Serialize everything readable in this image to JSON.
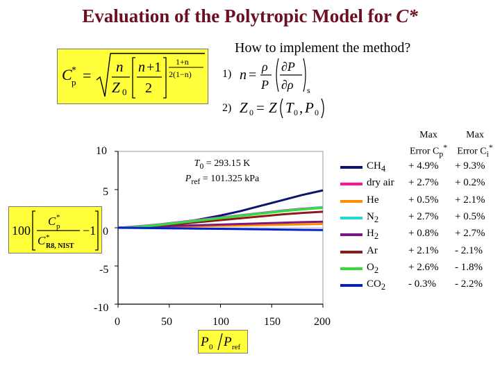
{
  "slide": {
    "title_text": "Evaluation of the Polytropic Model for ",
    "title_symbol": "C*",
    "subtitle": "How to implement the method?",
    "step1_label": "1)",
    "step2_label": "2)"
  },
  "legend_headers": {
    "col1_line1": "Max",
    "col1_line2": "Error C",
    "col1_sub": "p",
    "col1_sup": "*",
    "col2_line1": "Max",
    "col2_line2": "Error C",
    "col2_sub": "i",
    "col2_sup": "*"
  },
  "chart_data": {
    "type": "line",
    "xlim": [
      0,
      200
    ],
    "ylim": [
      -10,
      10
    ],
    "xticks": [
      "0",
      "50",
      "100",
      "150",
      "200"
    ],
    "yticks": [
      "10",
      "5",
      "0",
      "-5",
      "-10"
    ],
    "annotation": {
      "line1_sym": "T",
      "line1_sub": "0",
      "line1_val": " = 293.15 K",
      "line2_sym": "P",
      "line2_sub": "ref",
      "line2_val": " = 101.325 kPa"
    },
    "series": [
      {
        "name": "CH",
        "sub": "4",
        "color": "#0a1570",
        "max_err_cp": "+ 4.9%",
        "max_err_ci": "+ 9.3%",
        "x": [
          0,
          20,
          40,
          60,
          80,
          100,
          120,
          140,
          160,
          180,
          200
        ],
        "y": [
          0.0,
          0.05,
          0.3,
          0.65,
          1.1,
          1.6,
          2.2,
          2.9,
          3.6,
          4.3,
          4.9
        ]
      },
      {
        "name": "dry air",
        "sub": "",
        "color": "#ff1493",
        "max_err_cp": "+ 2.7%",
        "max_err_ci": "+ 0.2%",
        "x": [
          0,
          20,
          40,
          60,
          80,
          100,
          120,
          140,
          160,
          180,
          200
        ],
        "y": [
          0.0,
          0.2,
          0.45,
          0.75,
          1.05,
          1.35,
          1.65,
          1.95,
          2.25,
          2.5,
          2.7
        ]
      },
      {
        "name": "He",
        "sub": "",
        "color": "#ff8c00",
        "max_err_cp": "+ 0.5%",
        "max_err_ci": "+ 2.1%",
        "x": [
          0,
          20,
          40,
          60,
          80,
          100,
          120,
          140,
          160,
          180,
          200
        ],
        "y": [
          0.0,
          0.05,
          0.1,
          0.15,
          0.2,
          0.25,
          0.3,
          0.35,
          0.4,
          0.45,
          0.5
        ]
      },
      {
        "name": "N",
        "sub": "2",
        "color": "#20d8d8",
        "max_err_cp": "+ 2.7%",
        "max_err_ci": "+ 0.5%",
        "x": [
          0,
          20,
          40,
          60,
          80,
          100,
          120,
          140,
          160,
          180,
          200
        ],
        "y": [
          0.0,
          0.15,
          0.4,
          0.7,
          1.0,
          1.3,
          1.6,
          1.9,
          2.2,
          2.45,
          2.7
        ]
      },
      {
        "name": "H",
        "sub": "2",
        "color": "#7a1a80",
        "max_err_cp": "+ 0.8%",
        "max_err_ci": "+ 2.7%",
        "x": [
          0,
          20,
          40,
          60,
          80,
          100,
          120,
          140,
          160,
          180,
          200
        ],
        "y": [
          0.0,
          0.1,
          0.18,
          0.26,
          0.34,
          0.42,
          0.5,
          0.58,
          0.66,
          0.74,
          0.8
        ]
      },
      {
        "name": "Ar",
        "sub": "",
        "color": "#8b1a1a",
        "max_err_cp": "+ 2.1%",
        "max_err_ci": "- 2.1%",
        "x": [
          0,
          20,
          40,
          60,
          80,
          100,
          120,
          140,
          160,
          180,
          200
        ],
        "y": [
          0.0,
          0.1,
          0.3,
          0.5,
          0.75,
          1.0,
          1.25,
          1.5,
          1.75,
          1.95,
          2.1
        ]
      },
      {
        "name": "O",
        "sub": "2",
        "color": "#33dd33",
        "max_err_cp": "+ 2.6%",
        "max_err_ci": "- 1.8%",
        "x": [
          0,
          20,
          40,
          60,
          80,
          100,
          120,
          140,
          160,
          180,
          200
        ],
        "y": [
          0.0,
          0.1,
          0.35,
          0.65,
          0.95,
          1.25,
          1.55,
          1.85,
          2.15,
          2.4,
          2.6
        ]
      },
      {
        "name": "CO",
        "sub": "2",
        "color": "#0022cc",
        "max_err_cp": "- 0.3%",
        "max_err_ci": "- 2.2%",
        "x": [
          0,
          20,
          40,
          60,
          80,
          100,
          120,
          140,
          160,
          180,
          200
        ],
        "y": [
          0.0,
          -0.02,
          -0.05,
          -0.08,
          -0.11,
          -0.14,
          -0.17,
          -0.2,
          -0.24,
          -0.27,
          -0.3
        ]
      }
    ]
  }
}
